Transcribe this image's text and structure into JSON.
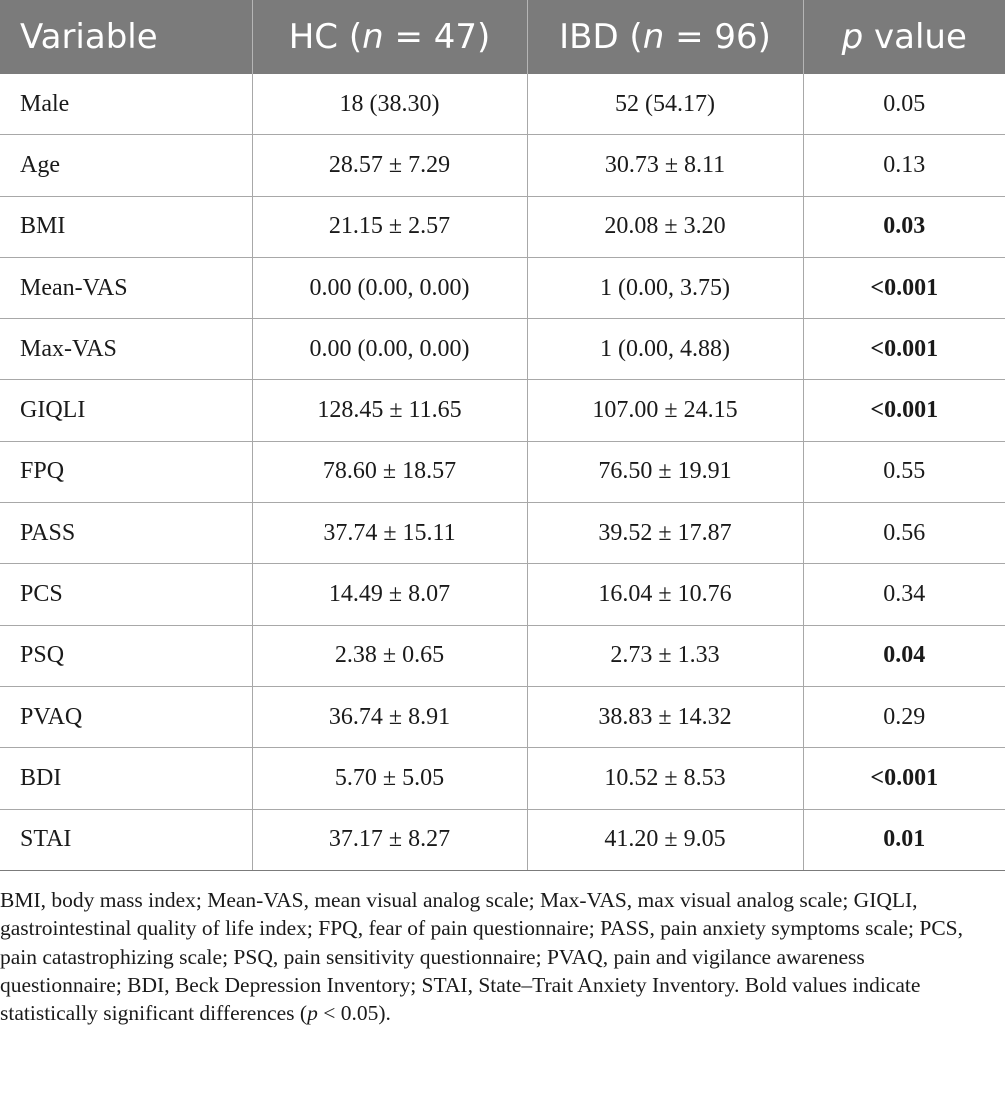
{
  "table": {
    "headers": {
      "variable": "Variable",
      "hc_prefix": "HC (",
      "hc_n": "n",
      "hc_suffix": " = 47)",
      "ibd_prefix": "IBD (",
      "ibd_n": "n",
      "ibd_suffix": " = 96)",
      "p_italic": "p",
      "p_suffix": " value"
    },
    "rows": [
      {
        "variable": "Male",
        "hc": "18 (38.30)",
        "ibd": "52 (54.17)",
        "p": "0.05",
        "significant": false
      },
      {
        "variable": "Age",
        "hc": "28.57 ± 7.29",
        "ibd": "30.73 ± 8.11",
        "p": "0.13",
        "significant": false
      },
      {
        "variable": "BMI",
        "hc": "21.15 ± 2.57",
        "ibd": "20.08 ± 3.20",
        "p": "0.03",
        "significant": true
      },
      {
        "variable": "Mean-VAS",
        "hc": "0.00 (0.00, 0.00)",
        "ibd": "1 (0.00, 3.75)",
        "p": "<0.001",
        "significant": true
      },
      {
        "variable": "Max-VAS",
        "hc": "0.00 (0.00, 0.00)",
        "ibd": "1 (0.00, 4.88)",
        "p": "<0.001",
        "significant": true
      },
      {
        "variable": "GIQLI",
        "hc": "128.45 ± 11.65",
        "ibd": "107.00 ± 24.15",
        "p": "<0.001",
        "significant": true
      },
      {
        "variable": "FPQ",
        "hc": "78.60 ± 18.57",
        "ibd": "76.50 ± 19.91",
        "p": "0.55",
        "significant": false
      },
      {
        "variable": "PASS",
        "hc": "37.74 ± 15.11",
        "ibd": "39.52 ± 17.87",
        "p": "0.56",
        "significant": false
      },
      {
        "variable": "PCS",
        "hc": "14.49 ± 8.07",
        "ibd": "16.04 ± 10.76",
        "p": "0.34",
        "significant": false
      },
      {
        "variable": "PSQ",
        "hc": "2.38 ± 0.65",
        "ibd": "2.73 ± 1.33",
        "p": "0.04",
        "significant": true
      },
      {
        "variable": "PVAQ",
        "hc": "36.74 ± 8.91",
        "ibd": "38.83 ± 14.32",
        "p": "0.29",
        "significant": false
      },
      {
        "variable": "BDI",
        "hc": "5.70 ± 5.05",
        "ibd": "10.52 ± 8.53",
        "p": "<0.001",
        "significant": true
      },
      {
        "variable": "STAI",
        "hc": "37.17 ± 8.27",
        "ibd": "41.20 ± 9.05",
        "p": "0.01",
        "significant": true
      }
    ]
  },
  "footnote": {
    "text_before": "BMI, body mass index; Mean-VAS, mean visual analog scale; Max-VAS, max visual analog scale; GIQLI, gastrointestinal quality of life index; FPQ, fear of pain questionnaire; PASS, pain anxiety symptoms scale; PCS, pain catastrophizing scale; PSQ, pain sensitivity questionnaire; PVAQ, pain and vigilance awareness questionnaire; BDI, Beck Depression Inventory; STAI, State–Trait Anxiety Inventory. Bold values indicate statistically significant differences (",
    "italic_p": "p",
    "text_after": " < 0.05)."
  },
  "colors": {
    "header_background": "#7b7b7b",
    "header_text": "#ffffff",
    "grid_lines": "#a8a8a8",
    "body_text": "#1a1a1a"
  }
}
